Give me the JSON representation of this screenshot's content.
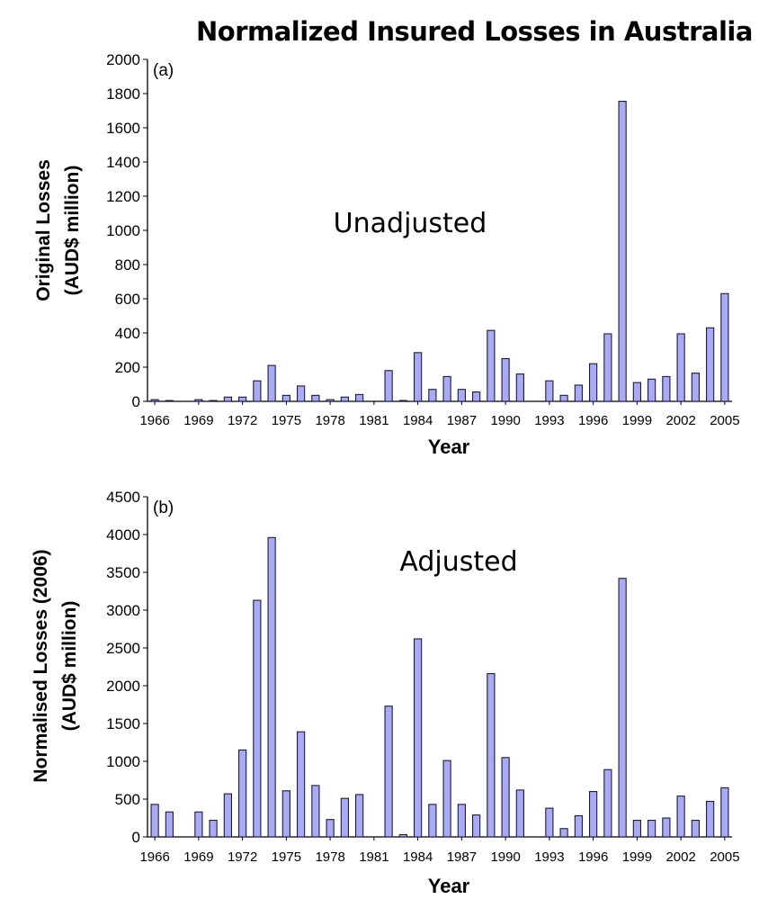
{
  "title": "Normalized Insured Losses in Australia",
  "colors": {
    "bar_fill": "#aaaaf2",
    "bar_stroke": "#1a1a4a",
    "axis": "#000000"
  },
  "chart_data": [
    {
      "type": "bar",
      "panel_label": "(a)",
      "annotation": "Unadjusted",
      "xlabel": "Year",
      "ylabel": [
        "Original Losses",
        "(AUD$ million)"
      ],
      "ylim": [
        0,
        2000
      ],
      "yticks": [
        0,
        200,
        400,
        600,
        800,
        1000,
        1200,
        1400,
        1600,
        1800,
        2000
      ],
      "xticks": [
        "1966",
        "1969",
        "1972",
        "1975",
        "1978",
        "1981",
        "1984",
        "1987",
        "1990",
        "1993",
        "1996",
        "1999",
        "2002",
        "2005"
      ],
      "grid": false,
      "legend": "none",
      "categories": [
        1966,
        1967,
        1968,
        1969,
        1970,
        1971,
        1972,
        1973,
        1974,
        1975,
        1976,
        1977,
        1978,
        1979,
        1980,
        1981,
        1982,
        1983,
        1984,
        1985,
        1986,
        1987,
        1988,
        1989,
        1990,
        1991,
        1992,
        1993,
        1994,
        1995,
        1996,
        1997,
        1998,
        1999,
        2000,
        2001,
        2002,
        2003,
        2004,
        2005
      ],
      "values": [
        10,
        5,
        0,
        10,
        5,
        25,
        25,
        120,
        210,
        35,
        90,
        35,
        10,
        25,
        40,
        0,
        180,
        5,
        285,
        70,
        145,
        70,
        55,
        415,
        250,
        160,
        0,
        120,
        35,
        95,
        220,
        395,
        1755,
        110,
        130,
        145,
        395,
        165,
        430,
        630
      ]
    },
    {
      "type": "bar",
      "panel_label": "(b)",
      "annotation": "Adjusted",
      "xlabel": "Year",
      "ylabel": [
        "Normalised Losses (2006)",
        "(AUD$ million)"
      ],
      "ylim": [
        0,
        4500
      ],
      "yticks": [
        0,
        500,
        1000,
        1500,
        2000,
        2500,
        3000,
        3500,
        4000,
        4500
      ],
      "xticks": [
        "1966",
        "1969",
        "1972",
        "1975",
        "1978",
        "1981",
        "1984",
        "1987",
        "1990",
        "1993",
        "1996",
        "1999",
        "2002",
        "2005"
      ],
      "grid": false,
      "legend": "none",
      "categories": [
        1966,
        1967,
        1968,
        1969,
        1970,
        1971,
        1972,
        1973,
        1974,
        1975,
        1976,
        1977,
        1978,
        1979,
        1980,
        1981,
        1982,
        1983,
        1984,
        1985,
        1986,
        1987,
        1988,
        1989,
        1990,
        1991,
        1992,
        1993,
        1994,
        1995,
        1996,
        1997,
        1998,
        1999,
        2000,
        2001,
        2002,
        2003,
        2004,
        2005
      ],
      "values": [
        430,
        330,
        0,
        330,
        220,
        570,
        1150,
        3130,
        3960,
        610,
        1390,
        680,
        230,
        510,
        560,
        0,
        1730,
        30,
        2620,
        430,
        1010,
        430,
        290,
        2160,
        1050,
        620,
        0,
        380,
        110,
        280,
        600,
        890,
        3420,
        220,
        220,
        250,
        540,
        220,
        470,
        650
      ]
    }
  ]
}
